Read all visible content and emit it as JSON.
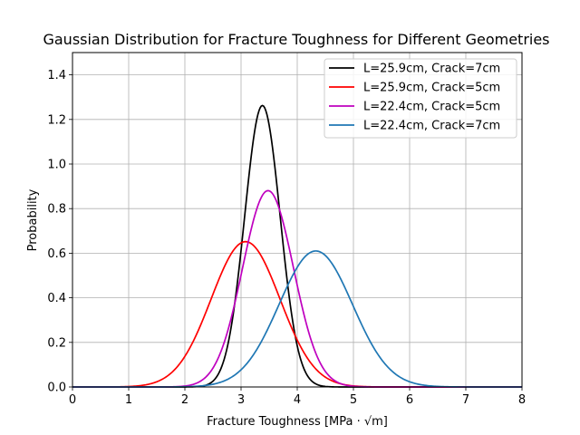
{
  "chart_data": {
    "type": "line",
    "title": "Gaussian Distribution for Fracture Toughness for Different Geometries",
    "xlabel": "Fracture Toughness [MPa · √m]",
    "ylabel": "Probability",
    "xlim": [
      0,
      8
    ],
    "ylim": [
      0,
      1.5
    ],
    "xticks": [
      "0",
      "1",
      "2",
      "3",
      "4",
      "5",
      "6",
      "7",
      "8"
    ],
    "yticks": [
      "0.0",
      "0.2",
      "0.4",
      "0.6",
      "0.8",
      "1.0",
      "1.2",
      "1.4"
    ],
    "grid": true,
    "legend_position": "top-right",
    "series": [
      {
        "name": "L=25.9cm, Crack=7cm",
        "color": "#000000",
        "mean": 3.38,
        "std": 0.316
      },
      {
        "name": "L=25.9cm, Crack=5cm",
        "color": "#ff0000",
        "mean": 3.08,
        "std": 0.612
      },
      {
        "name": "L=22.4cm, Crack=5cm",
        "color": "#bf00bf",
        "mean": 3.48,
        "std": 0.453
      },
      {
        "name": "L=22.4cm, Crack=7cm",
        "color": "#1f77b4",
        "mean": 4.33,
        "std": 0.654
      }
    ]
  }
}
